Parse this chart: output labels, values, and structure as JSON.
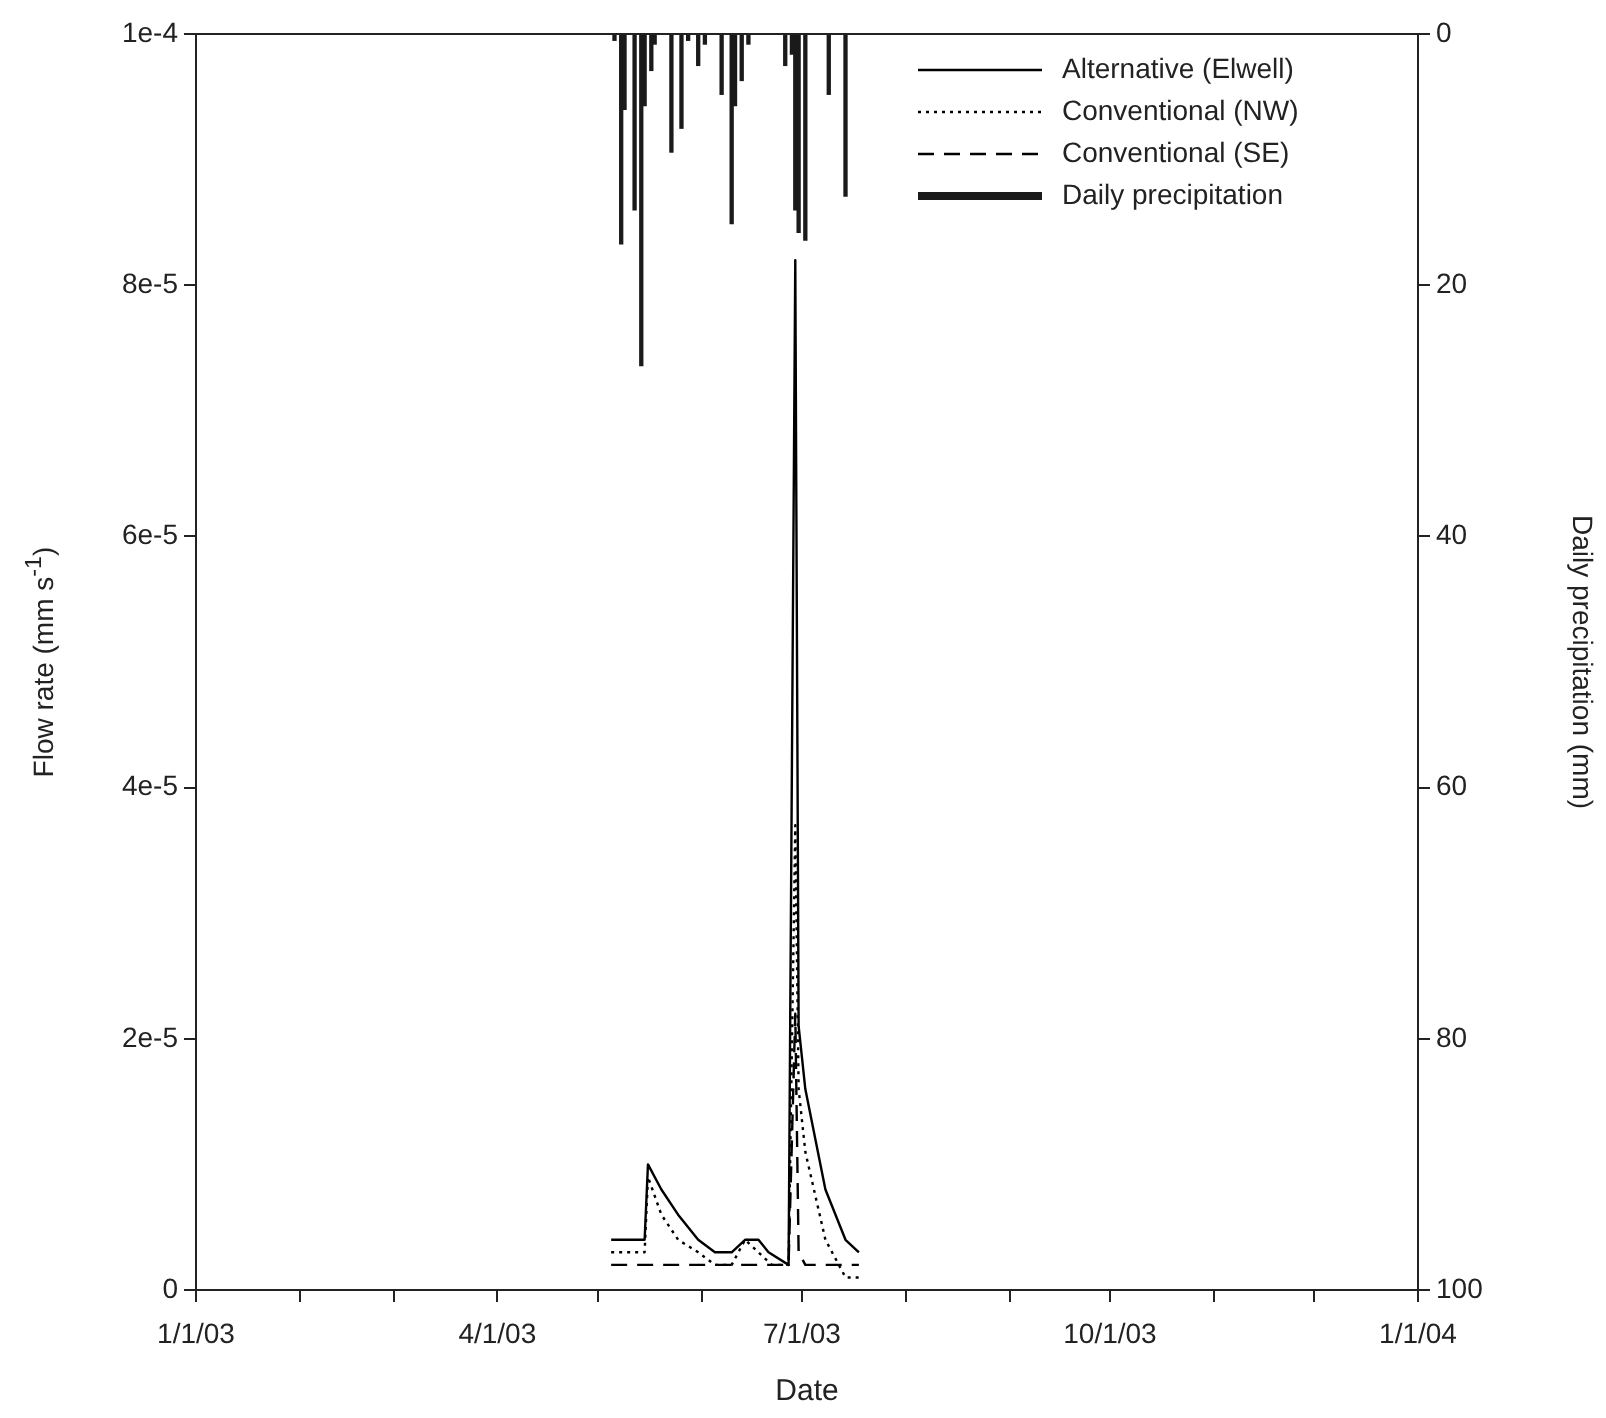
{
  "chart_data": {
    "type": "line",
    "xlabel": "Date",
    "ylabel": "Flow rate (mm s$^{-1}$)",
    "y2label": "Daily precipitation (mm)",
    "xlim": [
      "2003-01-01",
      "2004-01-01"
    ],
    "xticks": [
      {
        "value": "2003-01-01",
        "label": "1/1/03"
      },
      {
        "value": "2003-02-01",
        "label": null
      },
      {
        "value": "2003-03-01",
        "label": null
      },
      {
        "value": "2003-04-01",
        "label": "4/1/03"
      },
      {
        "value": "2003-05-01",
        "label": null
      },
      {
        "value": "2003-06-01",
        "label": null
      },
      {
        "value": "2003-07-01",
        "label": "7/1/03"
      },
      {
        "value": "2003-08-01",
        "label": null
      },
      {
        "value": "2003-09-01",
        "label": null
      },
      {
        "value": "2003-10-01",
        "label": "10/1/03"
      },
      {
        "value": "2003-11-01",
        "label": null
      },
      {
        "value": "2003-12-01",
        "label": null
      },
      {
        "value": "2004-01-01",
        "label": "1/1/04"
      }
    ],
    "ylim": [
      0,
      0.0001
    ],
    "yticks": [
      0,
      {
        "value": 2e-05,
        "label": "2e-5"
      },
      {
        "value": 4e-05,
        "label": "4e-5"
      },
      {
        "value": 6e-05,
        "label": "6e-5"
      },
      {
        "value": 8e-05,
        "label": "8e-5"
      },
      {
        "value": 0.0001,
        "label": "1e-4"
      }
    ],
    "y2lim": [
      100,
      0
    ],
    "y2ticks": [
      0,
      20,
      40,
      60,
      80,
      100
    ],
    "legend": "top right",
    "grid": false,
    "marker": "none",
    "series": [
      {
        "name": "Alternative (Elwell)",
        "color": "#000000",
        "line_style": "solid",
        "x": [
          "2003-05-05",
          "2003-05-10",
          "2003-05-15",
          "2003-05-16",
          "2003-05-20",
          "2003-05-25",
          "2003-05-31",
          "2003-06-05",
          "2003-06-10",
          "2003-06-14",
          "2003-06-18",
          "2003-06-21",
          "2003-06-27",
          "2003-06-29",
          "2003-06-30",
          "2003-07-02",
          "2003-07-08",
          "2003-07-14",
          "2003-07-18"
        ],
        "values": [
          4e-06,
          4e-06,
          4e-06,
          1e-05,
          8e-06,
          6e-06,
          4e-06,
          3e-06,
          3e-06,
          4e-06,
          4e-06,
          3e-06,
          2e-06,
          8.2e-05,
          2.1e-05,
          1.6e-05,
          8e-06,
          4e-06,
          3e-06
        ]
      },
      {
        "name": "Conventional (NW)",
        "color": "#000000",
        "line_style": "dotted",
        "x": [
          "2003-05-05",
          "2003-05-15",
          "2003-05-16",
          "2003-05-20",
          "2003-05-25",
          "2003-05-31",
          "2003-06-05",
          "2003-06-10",
          "2003-06-14",
          "2003-06-18",
          "2003-06-22",
          "2003-06-27",
          "2003-06-29",
          "2003-06-30",
          "2003-07-02",
          "2003-07-08",
          "2003-07-14",
          "2003-07-18"
        ],
        "values": [
          3e-06,
          3e-06,
          9e-06,
          6e-06,
          4e-06,
          3e-06,
          2e-06,
          2e-06,
          4e-06,
          3e-06,
          2e-06,
          2e-06,
          3.7e-05,
          1.6e-05,
          1.1e-05,
          4e-06,
          1e-06,
          1e-06
        ]
      },
      {
        "name": "Conventional (SE)",
        "color": "#000000",
        "line_style": "dashed",
        "x": [
          "2003-05-05",
          "2003-06-27",
          "2003-06-29",
          "2003-06-30",
          "2003-07-02",
          "2003-07-18"
        ],
        "values": [
          2e-06,
          2e-06,
          2.2e-05,
          3e-06,
          2e-06,
          2e-06
        ]
      },
      {
        "name": "Daily precipitation",
        "type": "bar",
        "axis": "y2",
        "color": "#1a1a1a",
        "x": [
          "2003-05-06",
          "2003-05-08",
          "2003-05-09",
          "2003-05-12",
          "2003-05-14",
          "2003-05-15",
          "2003-05-17",
          "2003-05-18",
          "2003-05-23",
          "2003-05-26",
          "2003-05-28",
          "2003-05-31",
          "2003-06-02",
          "2003-06-07",
          "2003-06-10",
          "2003-06-11",
          "2003-06-13",
          "2003-06-15",
          "2003-06-26",
          "2003-06-28",
          "2003-06-29",
          "2003-06-30",
          "2003-07-02",
          "2003-07-09",
          "2003-07-14"
        ],
        "values": [
          0.5,
          16.7,
          6,
          14,
          26.4,
          5.7,
          2.9,
          0.8,
          9.4,
          7.5,
          0.5,
          2.5,
          0.8,
          4.8,
          15.1,
          5.7,
          3.7,
          0.8,
          2.5,
          1.6,
          14,
          15.8,
          16.4,
          4.8,
          12.9
        ]
      }
    ]
  }
}
